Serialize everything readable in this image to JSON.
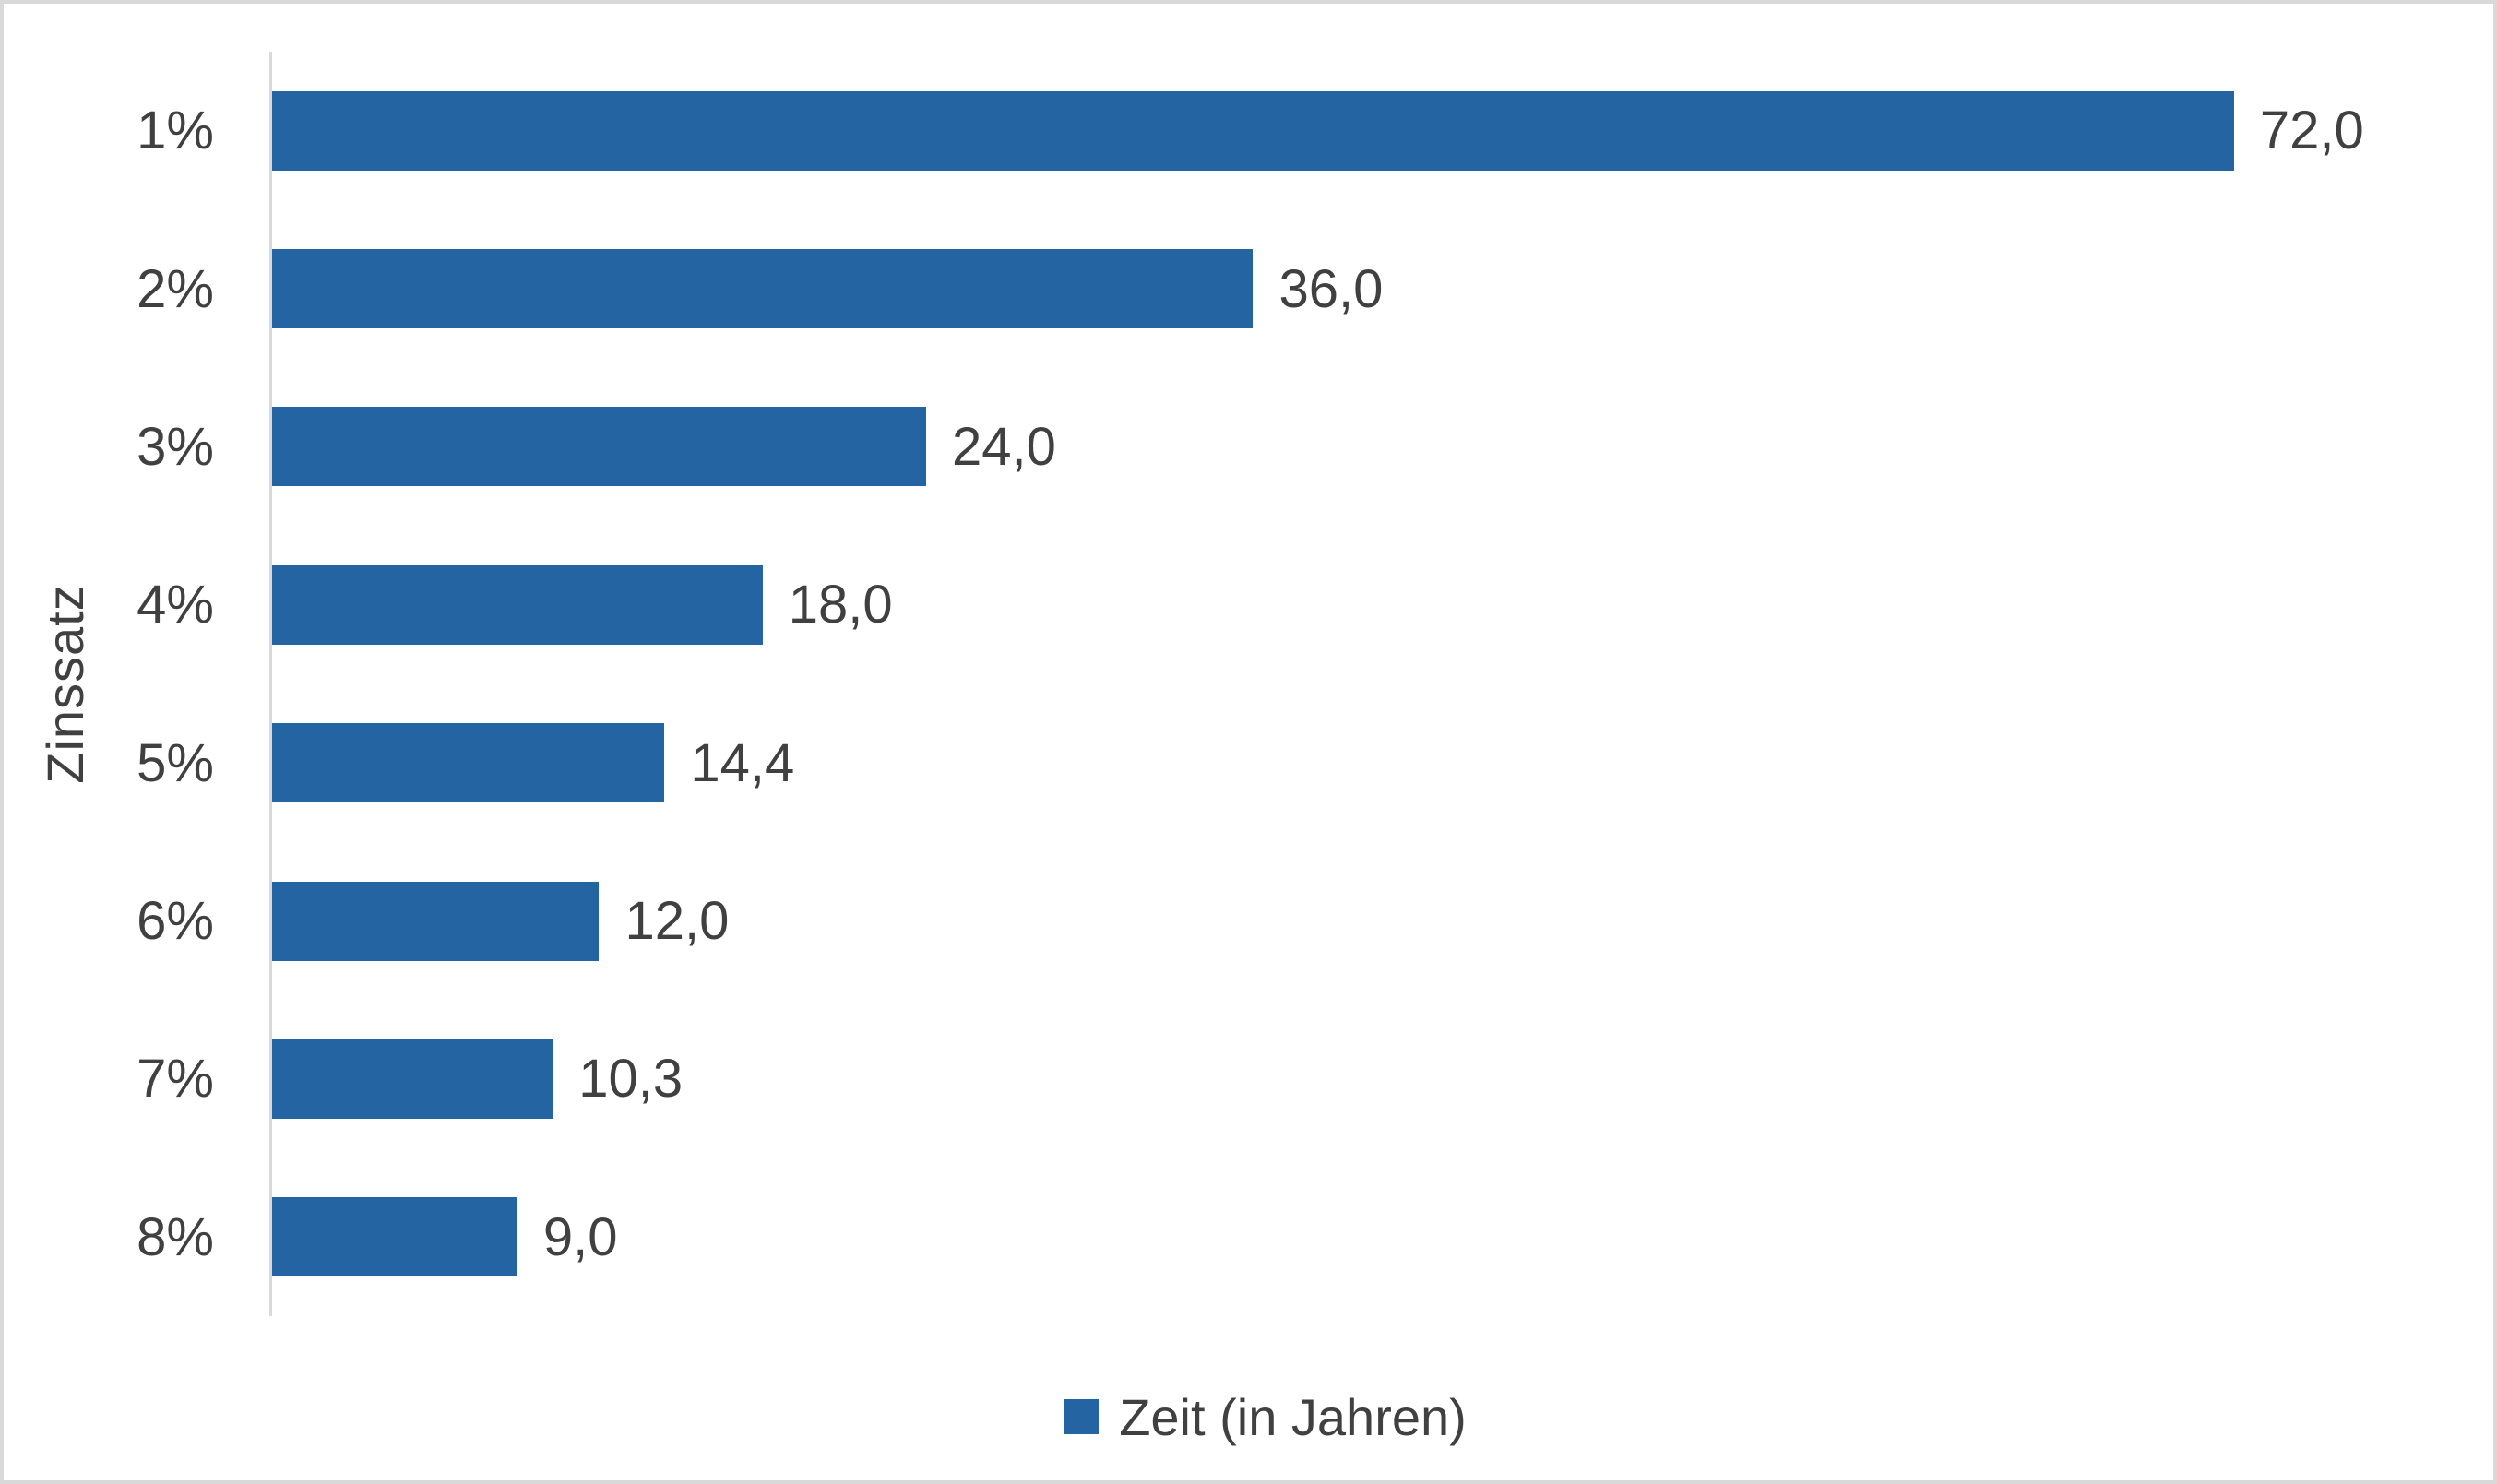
{
  "chart_data": {
    "type": "bar",
    "orientation": "horizontal",
    "title": "",
    "xlabel": "",
    "ylabel": "Zinssatz",
    "categories": [
      "1%",
      "2%",
      "3%",
      "4%",
      "5%",
      "6%",
      "7%",
      "8%"
    ],
    "values": [
      72.0,
      36.0,
      24.0,
      18.0,
      14.4,
      12.0,
      10.3,
      9.0
    ],
    "value_labels": [
      "72,0",
      "36,0",
      "24,0",
      "18,0",
      "14,4",
      "12,0",
      "10,3",
      "9,0"
    ],
    "series": [
      {
        "name": "Zeit (in Jahren)",
        "values": [
          72.0,
          36.0,
          24.0,
          18.0,
          14.4,
          12.0,
          10.3,
          9.0
        ]
      }
    ],
    "xlim": [
      0,
      80
    ],
    "grid": false,
    "data_labels": true,
    "legend": {
      "label": "Zeit (in Jahren)",
      "position": "bottom-center"
    },
    "colors": {
      "bar": "#2564A3",
      "text": "#404040",
      "axis_line": "#D9D9D9",
      "canvas_border": "#D9D9D9",
      "background": "#FFFFFF"
    }
  }
}
